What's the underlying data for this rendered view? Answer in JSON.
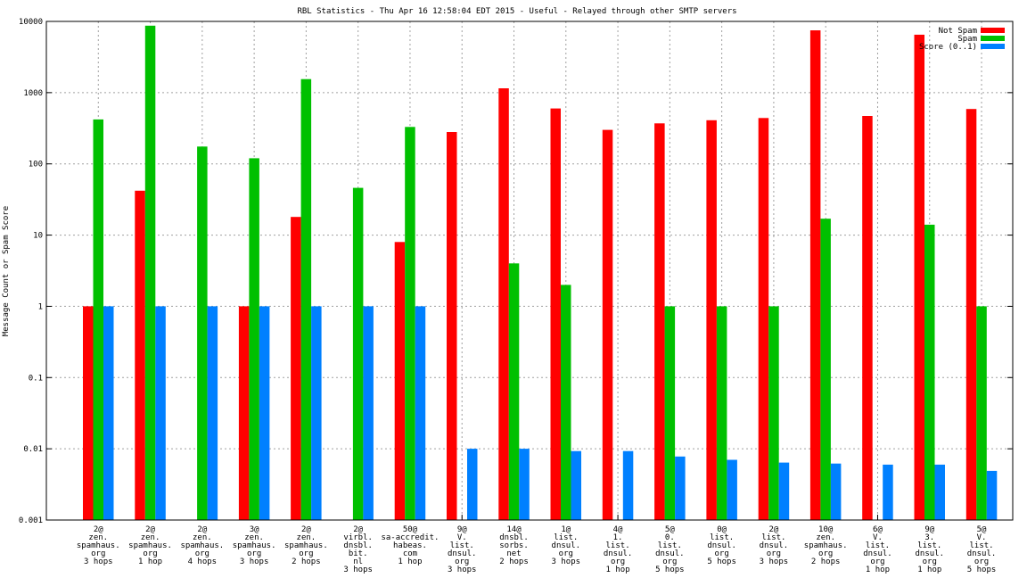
{
  "chart_data": {
    "type": "bar",
    "title": "RBL Statistics - Thu Apr 16 12:58:04 EDT 2015 - Useful - Relayed through other SMTP servers",
    "xlabel": "",
    "ylabel": "Message Count or Spam Score",
    "yscale": "log",
    "ylim": [
      0.001,
      10000
    ],
    "y_ticks": [
      "0.001",
      "0.01",
      "0.1",
      "1",
      "10",
      "100",
      "1000",
      "10000"
    ],
    "grid": true,
    "legend_position": "top-right",
    "categories": [
      [
        "2@",
        "zen.",
        "spamhaus.",
        "org",
        "3 hops"
      ],
      [
        "2@",
        "zen.",
        "spamhaus.",
        "org",
        "1 hop"
      ],
      [
        "2@",
        "zen.",
        "spamhaus.",
        "org",
        "4 hops"
      ],
      [
        "3@",
        "zen.",
        "spamhaus.",
        "org",
        "3 hops"
      ],
      [
        "2@",
        "zen.",
        "spamhaus.",
        "org",
        "2 hops"
      ],
      [
        "2@",
        "virbl.",
        "dnsbl.",
        "bit.",
        "nl",
        "3 hops"
      ],
      [
        "50@",
        "sa-accredit.",
        "habeas.",
        "com",
        "1 hop"
      ],
      [
        "9@",
        "V.",
        "list.",
        "dnsul.",
        "org",
        "3 hops"
      ],
      [
        "14@",
        "dnsbl.",
        "sorbs.",
        "net",
        "2 hops"
      ],
      [
        "1@",
        "list.",
        "dnsul.",
        "org",
        "3 hops"
      ],
      [
        "4@",
        "1.",
        "list.",
        "dnsul.",
        "org",
        "1 hop"
      ],
      [
        "5@",
        "0.",
        "list.",
        "dnsul.",
        "org",
        "5 hops"
      ],
      [
        "0@",
        "list.",
        "dnsul.",
        "org",
        "5 hops"
      ],
      [
        "2@",
        "list.",
        "dnsul.",
        "org",
        "3 hops"
      ],
      [
        "10@",
        "zen.",
        "spamhaus.",
        "org",
        "2 hops"
      ],
      [
        "6@",
        "V.",
        "list.",
        "dnsul.",
        "org",
        "1 hop"
      ],
      [
        "9@",
        "3.",
        "list.",
        "dnsul.",
        "org",
        "1 hop"
      ],
      [
        "5@",
        "V.",
        "list.",
        "dnsul.",
        "org",
        "5 hops"
      ]
    ],
    "series": [
      {
        "name": "Not Spam",
        "color": "#ff0000",
        "values": [
          1,
          42,
          null,
          1,
          18,
          null,
          8,
          280,
          1150,
          600,
          300,
          370,
          410,
          440,
          7500,
          470,
          6500,
          590
        ]
      },
      {
        "name": "Spam",
        "color": "#00c000",
        "values": [
          420,
          8700,
          175,
          120,
          1550,
          46,
          330,
          null,
          4,
          2,
          null,
          1,
          1,
          1,
          17,
          null,
          14,
          1
        ]
      },
      {
        "name": "Score (0..1)",
        "color": "#0080ff",
        "values": [
          1,
          1,
          1,
          1,
          1,
          1,
          1,
          0.01,
          0.01,
          0.0093,
          0.0093,
          0.0078,
          0.007,
          0.0064,
          0.0062,
          0.006,
          0.006,
          0.0049
        ]
      }
    ]
  }
}
